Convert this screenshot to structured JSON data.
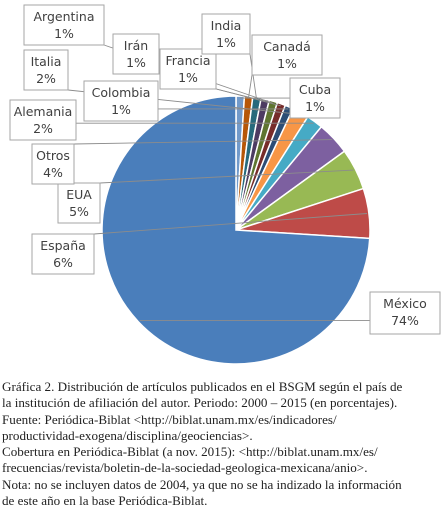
{
  "chart_data": {
    "type": "pie",
    "title": "",
    "unit": "%",
    "slices": [
      {
        "name": "México",
        "value": 74,
        "label": "74%",
        "color": "#4a7ebb"
      },
      {
        "name": "España",
        "value": 6,
        "label": "6%",
        "color": "#be4b48"
      },
      {
        "name": "EUA",
        "value": 5,
        "label": "5%",
        "color": "#98b954"
      },
      {
        "name": "Otros",
        "value": 4,
        "label": "4%",
        "color": "#7d60a0"
      },
      {
        "name": "Alemania",
        "value": 2,
        "label": "2%",
        "color": "#46aac5"
      },
      {
        "name": "Italia",
        "value": 2,
        "label": "2%",
        "color": "#f79646"
      },
      {
        "name": "Colombia",
        "value": 1,
        "label": "1%",
        "color": "#2c4d75"
      },
      {
        "name": "Irán",
        "value": 1,
        "label": "1%",
        "color": "#772c2a"
      },
      {
        "name": "Argentina",
        "value": 1,
        "label": "1%",
        "color": "#5f7530"
      },
      {
        "name": "Francia",
        "value": 1,
        "label": "1%",
        "color": "#4d3b62"
      },
      {
        "name": "India",
        "value": 1,
        "label": "1%",
        "color": "#276a7c"
      },
      {
        "name": "Canadá",
        "value": 1,
        "label": "1%",
        "color": "#b65708"
      },
      {
        "name": "Cuba",
        "value": 1,
        "label": "1%",
        "color": "#729aca"
      }
    ],
    "data_labels": "callouts"
  },
  "caption": {
    "line1": "Gráfica 2. Distribución de artículos publicados en el BSGM según el país de",
    "line2": "la institución de afiliación del autor. Periodo: 2000 – 2015 (en porcentajes).",
    "line3": "Fuente: Periódica-Biblat <http://biblat.unam.mx/es/indicadores/",
    "line4": "productividad-exogena/disciplina/geociencias>.",
    "line5": "Cobertura en Periódica-Biblat (a nov. 2015): <http://biblat.unam.mx/es/",
    "line6": "frecuencias/revista/boletin-de-la-sociedad-geologica-mexicana/anio>.",
    "line7": "Nota: no se incluyen datos de 2004, ya que no se ha indizado la información",
    "line8": "de este año en la base Periódica-Biblat."
  }
}
